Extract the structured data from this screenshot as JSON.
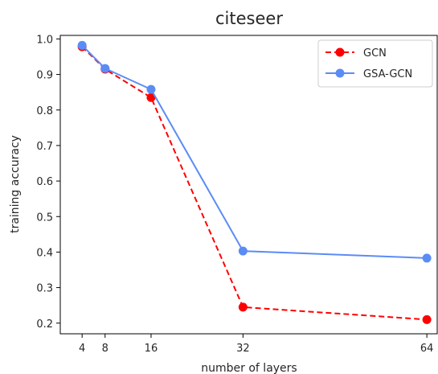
{
  "chart_data": {
    "type": "line",
    "title": "citeseer",
    "xlabel": "number of layers",
    "ylabel": "training accuracy",
    "x": [
      4,
      8,
      16,
      32,
      64
    ],
    "xticks": [
      "4",
      "8",
      "16",
      "32",
      "64"
    ],
    "yticks": [
      "0.2",
      "0.3",
      "0.4",
      "0.5",
      "0.6",
      "0.7",
      "0.8",
      "0.9",
      "1.0"
    ],
    "xlim": [
      0.2,
      65.8
    ],
    "ylim": [
      0.17,
      1.01
    ],
    "grid": false,
    "legend_position": "top-right",
    "series": [
      {
        "name": "GCN",
        "values": [
          0.978,
          0.915,
          0.835,
          0.245,
          0.21
        ],
        "color": "#ff0000",
        "style": "dashed",
        "marker": "circle"
      },
      {
        "name": "GSA-GCN",
        "values": [
          0.982,
          0.917,
          0.858,
          0.403,
          0.383
        ],
        "color": "#5b8cf5",
        "style": "solid",
        "marker": "circle"
      }
    ]
  }
}
